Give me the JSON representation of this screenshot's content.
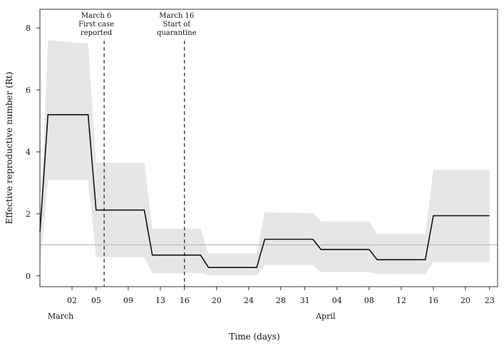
{
  "chart_data": {
    "type": "line",
    "title": "",
    "xlabel": "Time (days)",
    "ylabel": "Effective reproductive number  (Rt)",
    "ylim": [
      -0.35,
      8.6
    ],
    "yticks": [
      0,
      2,
      4,
      6,
      8
    ],
    "x_range": [
      "2020-02-27",
      "2020-04-24"
    ],
    "x_ticks": [
      {
        "date": "2020-03-02",
        "label": "02"
      },
      {
        "date": "2020-03-05",
        "label": "05"
      },
      {
        "date": "2020-03-09",
        "label": "09"
      },
      {
        "date": "2020-03-13",
        "label": "13"
      },
      {
        "date": "2020-03-16",
        "label": "16"
      },
      {
        "date": "2020-03-20",
        "label": "20"
      },
      {
        "date": "2020-03-24",
        "label": "24"
      },
      {
        "date": "2020-03-28",
        "label": "28"
      },
      {
        "date": "2020-03-31",
        "label": "31"
      },
      {
        "date": "2020-04-04",
        "label": "04"
      },
      {
        "date": "2020-04-08",
        "label": "08"
      },
      {
        "date": "2020-04-12",
        "label": "12"
      },
      {
        "date": "2020-04-16",
        "label": "16"
      },
      {
        "date": "2020-04-20",
        "label": "20"
      },
      {
        "date": "2020-04-23",
        "label": "23"
      }
    ],
    "month_labels": [
      {
        "date": "2020-03-02",
        "label": "March"
      },
      {
        "date": "2020-04-04",
        "label": "April"
      }
    ],
    "reference_line": {
      "y": 1
    },
    "annotations": [
      {
        "date": "2020-03-06",
        "lines": [
          "March 6",
          "First case",
          "reported"
        ]
      },
      {
        "date": "2020-03-16",
        "lines": [
          "March 16",
          "Start of",
          "quarantine"
        ]
      }
    ],
    "series": [
      {
        "points": [
          [
            "2020-02-27",
            1.4
          ],
          [
            "2020-02-28",
            5.2
          ],
          [
            "2020-03-04",
            5.2
          ],
          [
            "2020-03-05",
            2.12
          ],
          [
            "2020-03-11",
            2.12
          ],
          [
            "2020-03-12",
            0.67
          ],
          [
            "2020-03-18",
            0.67
          ],
          [
            "2020-03-19",
            0.27
          ],
          [
            "2020-03-25",
            0.27
          ],
          [
            "2020-03-26",
            1.18
          ],
          [
            "2020-04-01",
            1.18
          ],
          [
            "2020-04-02",
            0.85
          ],
          [
            "2020-04-08",
            0.85
          ],
          [
            "2020-04-09",
            0.52
          ],
          [
            "2020-04-15",
            0.52
          ],
          [
            "2020-04-16",
            1.94
          ],
          [
            "2020-04-23",
            1.94
          ]
        ],
        "band": [
          [
            "2020-02-27",
            0.2,
            1.4
          ],
          [
            "2020-02-28",
            3.1,
            7.6
          ],
          [
            "2020-03-04",
            3.1,
            7.5
          ],
          [
            "2020-03-05",
            0.6,
            3.65
          ],
          [
            "2020-03-11",
            0.6,
            3.65
          ],
          [
            "2020-03-12",
            0.08,
            1.52
          ],
          [
            "2020-03-18",
            0.08,
            1.52
          ],
          [
            "2020-03-19",
            0.02,
            0.72
          ],
          [
            "2020-03-25",
            0.02,
            0.72
          ],
          [
            "2020-03-26",
            0.35,
            2.05
          ],
          [
            "2020-04-01",
            0.35,
            2.02
          ],
          [
            "2020-04-02",
            0.12,
            1.75
          ],
          [
            "2020-04-08",
            0.12,
            1.75
          ],
          [
            "2020-04-09",
            0.05,
            1.35
          ],
          [
            "2020-04-15",
            0.05,
            1.35
          ],
          [
            "2020-04-16",
            0.45,
            3.42
          ],
          [
            "2020-04-23",
            0.45,
            3.42
          ]
        ]
      }
    ],
    "colors": {
      "line": "#111111",
      "band": "#e6e6e6",
      "reference": "#b0b0b0",
      "frame": "#333333"
    },
    "grid": false,
    "legend": "none"
  }
}
